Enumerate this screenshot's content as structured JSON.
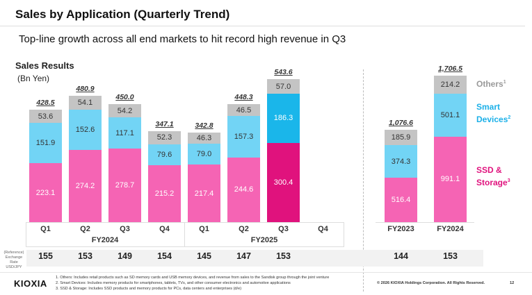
{
  "header": {
    "title": "Sales by Application (Quarterly Trend)",
    "subtitle": "Top-line growth across all end markets to hit record high revenue in Q3"
  },
  "colors": {
    "ssd": "#f564b4",
    "smart": "#72d4f5",
    "others": "#c4c4c4",
    "ssd_hl": "#e0127d",
    "smart_hl": "#1ab6ea",
    "others_hl": "#c4c4c4"
  },
  "chart_data": {
    "type": "bar",
    "stacked": true,
    "title": "Sales Results",
    "unit": "(Bn Yen)",
    "series_names": [
      "SSD & Storage",
      "Smart Devices",
      "Others"
    ],
    "quarterly": {
      "categories": [
        "Q1",
        "Q2",
        "Q3",
        "Q4",
        "Q1",
        "Q2",
        "Q3",
        "Q4"
      ],
      "groups": [
        "FY2024",
        "FY2025"
      ],
      "ssd": [
        223.1,
        274.2,
        278.7,
        215.2,
        217.4,
        244.6,
        300.4,
        null
      ],
      "smart": [
        151.9,
        152.6,
        117.1,
        79.6,
        79.0,
        157.3,
        186.3,
        null
      ],
      "others": [
        53.6,
        54.1,
        54.2,
        52.3,
        46.3,
        46.5,
        57.0,
        null
      ],
      "totals": [
        "428.5",
        "480.9",
        "450.0",
        "347.1",
        "342.8",
        "448.3",
        "543.6",
        ""
      ],
      "ssd_labels": [
        "223.1",
        "274.2",
        "278.7",
        "215.2",
        "217.4",
        "244.6",
        "300.4",
        ""
      ],
      "smart_labels": [
        "151.9",
        "152.6",
        "117.1",
        "79.6",
        "79.0",
        "157.3",
        "186.3",
        ""
      ],
      "others_labels": [
        "53.6",
        "54.1",
        "54.2",
        "52.3",
        "46.3",
        "46.5",
        "57.0",
        ""
      ],
      "highlight_index": 6,
      "ylim": [
        0,
        560
      ]
    },
    "annual": {
      "categories": [
        "FY2023",
        "FY2024"
      ],
      "ssd": [
        516.4,
        991.1
      ],
      "smart": [
        374.3,
        501.1
      ],
      "others": [
        185.9,
        214.2
      ],
      "totals": [
        "1,076.6",
        "1,706.5"
      ],
      "ssd_labels": [
        "516.4",
        "991.1"
      ],
      "smart_labels": [
        "374.3",
        "501.1"
      ],
      "others_labels": [
        "185.9",
        "214.2"
      ],
      "ylim": [
        0,
        1750
      ]
    },
    "legend": {
      "others": "Others",
      "others_sup": "1",
      "smart1": "Smart",
      "smart2": "Devices",
      "smart_sup": "2",
      "ssd1": "SSD &",
      "ssd2": "Storage",
      "ssd_sup": "3"
    }
  },
  "exchange": {
    "label1": "(Reference)",
    "label2": "Exchange Rate",
    "label3": "USD/JPY",
    "quarterly": [
      "155",
      "153",
      "149",
      "154",
      "145",
      "147",
      "153"
    ],
    "annual": [
      "144",
      "153"
    ]
  },
  "footer": {
    "logo": "KIOXIA",
    "notes": [
      "1. Others: Includes retail products such as SD memory cards and USB memory devices, and revenue from sales to the Sandisk group through the joint venture",
      "2. Smart Devices: Includes memory products for smartphones, tablets, TVs, and other consumer electronics and automotive applications",
      "3. SSD & Storage: Includes SSD products and memory products for PCs, data centers and enterprises (d/e)"
    ],
    "copyright": "© 2026 KIOXIA Holdings Corporation. All Rights Reserved.",
    "page": "12"
  }
}
